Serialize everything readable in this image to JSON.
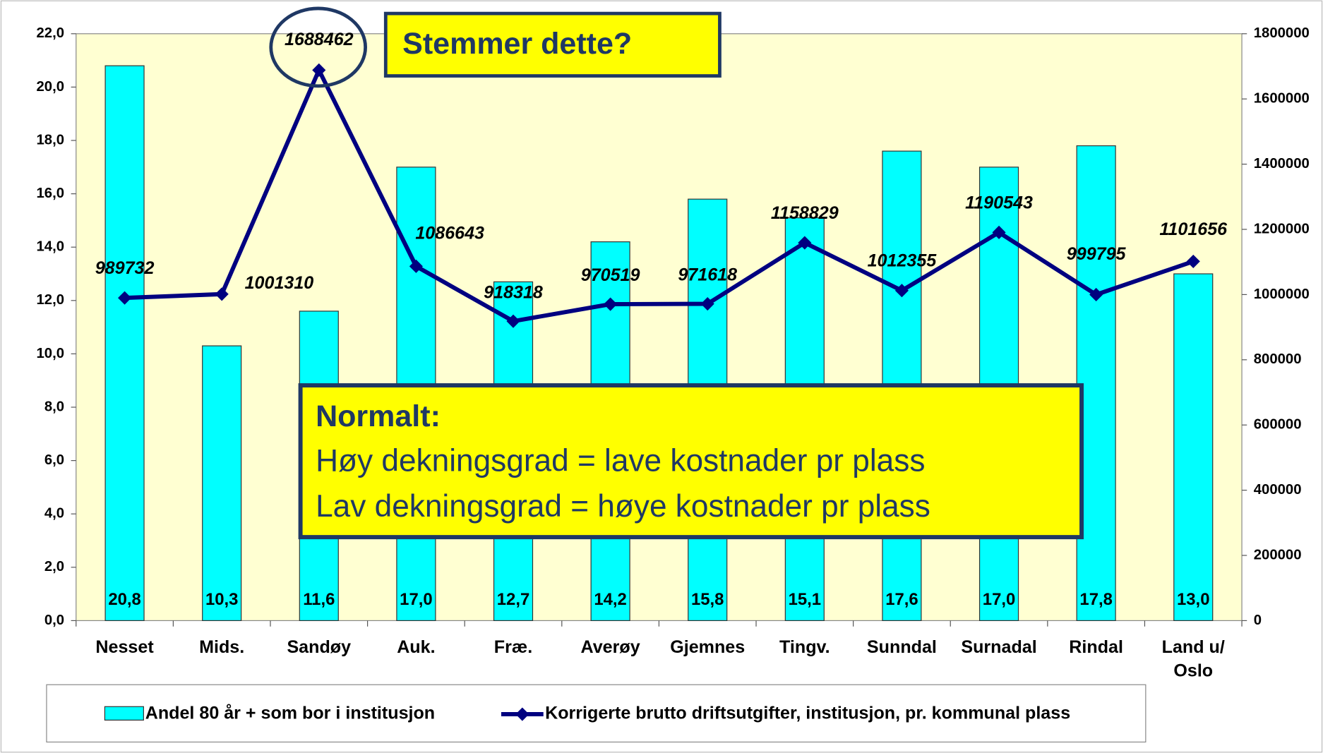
{
  "chart_data": {
    "type": "bar-line",
    "categories": [
      "Nesset",
      "Mids.",
      "Sandøy",
      "Auk.",
      "Fræ.",
      "Averøy",
      "Gjemnes",
      "Tingv.",
      "Sunndal",
      "Surnadal",
      "Rindal",
      "Land u/ Oslo"
    ],
    "series": [
      {
        "name": "Andel 80 år + som bor i institusjon",
        "type": "bar",
        "color": "#00ffff",
        "axis": "y",
        "values": [
          20.8,
          10.3,
          11.6,
          17.0,
          12.7,
          14.2,
          15.8,
          15.1,
          17.6,
          17.0,
          17.8,
          13.0
        ],
        "value_labels": [
          "20,8",
          "10,3",
          "11,6",
          "17,0",
          "12,7",
          "14,2",
          "15,8",
          "15,1",
          "17,6",
          "17,0",
          "17,8",
          "13,0"
        ]
      },
      {
        "name": "Korrigerte brutto driftsutgifter, institusjon, pr. kommunal plass",
        "type": "line",
        "color": "#000080",
        "axis": "y2",
        "values": [
          989732,
          1001310,
          1688462,
          1086643,
          918318,
          970519,
          971618,
          1158829,
          1012355,
          1190543,
          999795,
          1101656
        ]
      }
    ],
    "ylim": [
      0,
      22
    ],
    "yticks": [
      {
        "value": 0,
        "label": "0,0"
      },
      {
        "value": 2,
        "label": "2,0"
      },
      {
        "value": 4,
        "label": "4,0"
      },
      {
        "value": 6,
        "label": "6,0"
      },
      {
        "value": 8,
        "label": "8,0"
      },
      {
        "value": 10,
        "label": "10,0"
      },
      {
        "value": 12,
        "label": "12,0"
      },
      {
        "value": 14,
        "label": "14,0"
      },
      {
        "value": 16,
        "label": "16,0"
      },
      {
        "value": 18,
        "label": "18,0"
      },
      {
        "value": 20,
        "label": "20,0"
      },
      {
        "value": 22,
        "label": "22,0"
      }
    ],
    "y2lim": [
      0,
      1800000
    ],
    "y2ticks": [
      0,
      200000,
      400000,
      600000,
      800000,
      1000000,
      1200000,
      1400000,
      1600000,
      1800000
    ],
    "legend": "bottom",
    "callout": "Stemmer dette?",
    "note": {
      "title": "Normalt:",
      "lines": [
        "Høy dekningsgrad = lave kostnader pr plass",
        "Lav dekningsgrad = høye kostnader pr plass"
      ]
    }
  }
}
